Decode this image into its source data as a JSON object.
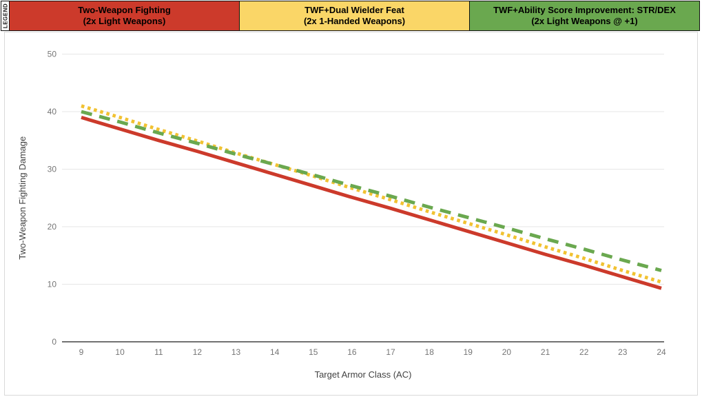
{
  "legend": {
    "label": "LEGEND",
    "items": [
      {
        "title": "Two-Weapon Fighting",
        "subtitle": "(2x Light Weapons)",
        "color": "#cc3a2b"
      },
      {
        "title": "TWF+Dual Wielder Feat",
        "subtitle": "(2x 1-Handed Weapons)",
        "color": "#fad667"
      },
      {
        "title": "TWF+Ability Score Improvement: STR/DEX",
        "subtitle": "(2x Light Weapons @ +1)",
        "color": "#6aa84f"
      }
    ]
  },
  "chart_data": {
    "type": "line",
    "x": [
      9,
      10,
      11,
      12,
      13,
      14,
      15,
      16,
      17,
      18,
      19,
      20,
      21,
      22,
      23,
      24
    ],
    "xlabel": "Target Armor Class (AC)",
    "ylabel": "Two-Weapon Fighting Damage",
    "xlim": [
      9,
      24
    ],
    "ylim": [
      0,
      50
    ],
    "yticks": [
      0,
      10,
      20,
      30,
      40,
      50
    ],
    "grid": true,
    "legend_position": "top",
    "series": [
      {
        "name": "Two-Weapon Fighting (2x Light Weapons)",
        "color": "#cc3a2b",
        "style": "solid",
        "values": [
          39.0,
          37.0,
          35.0,
          33.1,
          31.1,
          29.1,
          27.1,
          25.1,
          23.2,
          21.2,
          19.2,
          17.2,
          15.2,
          13.3,
          11.3,
          9.3
        ]
      },
      {
        "name": "TWF+Dual Wielder Feat (2x 1-Handed Weapons)",
        "color": "#f1c232",
        "style": "dotted",
        "values": [
          41.0,
          39.0,
          36.9,
          34.9,
          32.8,
          30.8,
          28.8,
          26.7,
          24.7,
          22.6,
          20.6,
          18.6,
          16.5,
          14.5,
          12.4,
          10.4
        ]
      },
      {
        "name": "TWF+Ability Score Improvement: STR/DEX (2x Light Weapons @ +1)",
        "color": "#6aa84f",
        "style": "dashed",
        "values": [
          40.0,
          38.2,
          36.3,
          34.5,
          32.6,
          30.8,
          29.0,
          27.1,
          25.3,
          23.4,
          21.6,
          19.8,
          17.9,
          16.1,
          14.2,
          12.4
        ]
      }
    ],
    "colors": {
      "grid": "#e6e6e6",
      "axis": "#424242",
      "tick_label": "#757575",
      "axis_title": "#424242"
    }
  }
}
